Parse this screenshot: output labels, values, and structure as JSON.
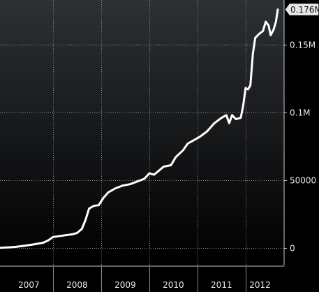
{
  "chart_data": {
    "type": "line",
    "title": "",
    "xlabel": "",
    "ylabel": "",
    "xlim": [
      2006.9,
      2012.8
    ],
    "ylim": [
      -13000,
      183000
    ],
    "grid": true,
    "line_color": "#ffffff",
    "background": [
      "#2d3034",
      "#000000"
    ],
    "y_ticks": [
      {
        "value": 0,
        "label": "0"
      },
      {
        "value": 50000,
        "label": "50000"
      },
      {
        "value": 100000,
        "label": "0.1M"
      },
      {
        "value": 150000,
        "label": "0.15M"
      }
    ],
    "x_ticks": [
      {
        "value": 2007.5,
        "label": "2007"
      },
      {
        "value": 2008.5,
        "label": "2008"
      },
      {
        "value": 2009.5,
        "label": "2009"
      },
      {
        "value": 2010.5,
        "label": "2010"
      },
      {
        "value": 2011.5,
        "label": "2011"
      },
      {
        "value": 2012.3,
        "label": "2012"
      }
    ],
    "x_boundaries": [
      2008.0,
      2009.0,
      2010.0,
      2011.0,
      2012.0
    ],
    "last_value_label": "0.176M",
    "series": [
      {
        "values": [
          [
            2006.9,
            0
          ],
          [
            2007.0,
            200
          ],
          [
            2007.2,
            600
          ],
          [
            2007.4,
            1500
          ],
          [
            2007.6,
            2500
          ],
          [
            2007.8,
            3800
          ],
          [
            2007.9,
            5500
          ],
          [
            2008.0,
            8000
          ],
          [
            2008.2,
            9000
          ],
          [
            2008.4,
            10000
          ],
          [
            2008.5,
            11000
          ],
          [
            2008.6,
            14000
          ],
          [
            2008.68,
            21000
          ],
          [
            2008.75,
            29000
          ],
          [
            2008.85,
            31000
          ],
          [
            2008.95,
            31500
          ],
          [
            2009.05,
            37000
          ],
          [
            2009.15,
            41000
          ],
          [
            2009.3,
            44000
          ],
          [
            2009.45,
            46000
          ],
          [
            2009.6,
            47000
          ],
          [
            2009.75,
            49000
          ],
          [
            2009.9,
            51000
          ],
          [
            2010.0,
            55000
          ],
          [
            2010.1,
            54000
          ],
          [
            2010.2,
            57000
          ],
          [
            2010.3,
            60000
          ],
          [
            2010.45,
            61000
          ],
          [
            2010.55,
            67000
          ],
          [
            2010.7,
            72000
          ],
          [
            2010.8,
            77000
          ],
          [
            2010.95,
            80000
          ],
          [
            2011.05,
            82000
          ],
          [
            2011.2,
            86000
          ],
          [
            2011.35,
            92000
          ],
          [
            2011.5,
            96000
          ],
          [
            2011.6,
            98000
          ],
          [
            2011.66,
            92000
          ],
          [
            2011.72,
            98000
          ],
          [
            2011.8,
            95000
          ],
          [
            2011.9,
            96000
          ],
          [
            2011.95,
            105000
          ],
          [
            2012.0,
            118000
          ],
          [
            2012.05,
            117000
          ],
          [
            2012.1,
            120000
          ],
          [
            2012.15,
            143000
          ],
          [
            2012.2,
            155000
          ],
          [
            2012.28,
            158000
          ],
          [
            2012.36,
            160000
          ],
          [
            2012.42,
            167000
          ],
          [
            2012.48,
            164000
          ],
          [
            2012.52,
            157000
          ],
          [
            2012.58,
            161000
          ],
          [
            2012.63,
            167000
          ],
          [
            2012.67,
            176000
          ]
        ]
      }
    ]
  }
}
